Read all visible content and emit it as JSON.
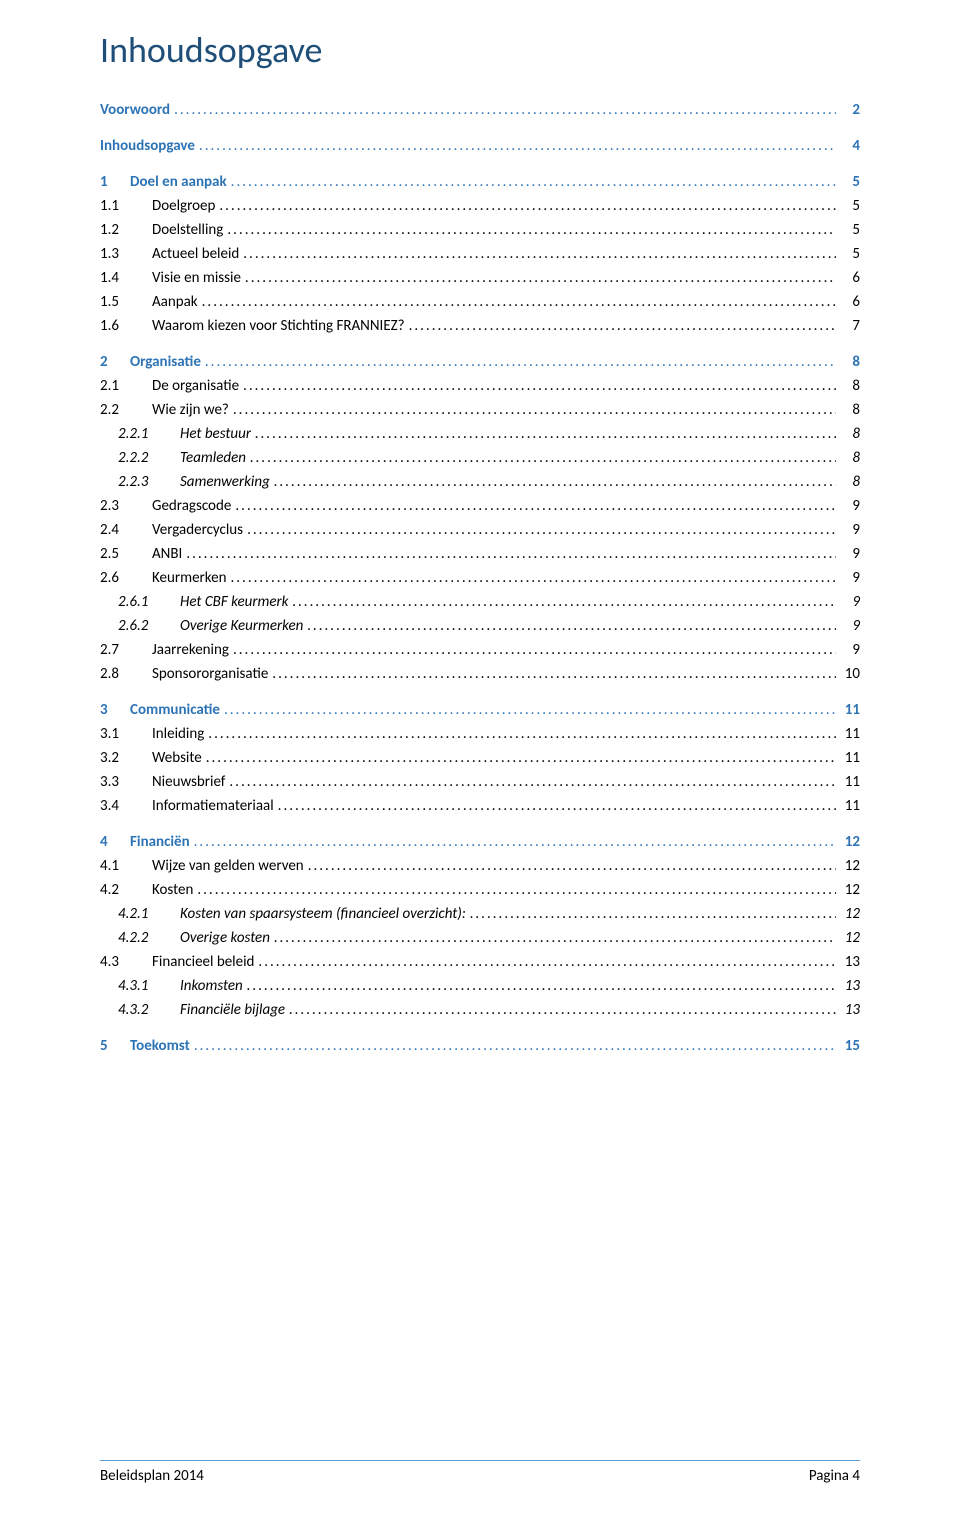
{
  "title": {
    "text": "Inhoudsopgave",
    "color": "#1f4e79",
    "fontsize_pt": 27
  },
  "colors": {
    "heading": "#1f4e79",
    "link": "#2e74b5",
    "body": "#000000",
    "footer_rule": "#5b9bd5",
    "background": "#ffffff"
  },
  "typography": {
    "font_family": "Calibri",
    "body_fontsize_pt": 11,
    "title_fontsize_pt": 27
  },
  "footer": {
    "left": "Beleidsplan 2014",
    "right": "Pagina 4"
  },
  "toc": {
    "leader_char": ".",
    "entries": [
      {
        "level": 0,
        "num": "",
        "label": "Voorwoord",
        "page": "2",
        "color": "#2e74b5",
        "space_before": false
      },
      {
        "level": 0,
        "num": "",
        "label": "Inhoudsopgave",
        "page": "4",
        "color": "#2e74b5",
        "space_before": true
      },
      {
        "level": 0,
        "num": "1",
        "label": "Doel en aanpak",
        "page": "5",
        "color": "#2e74b5",
        "space_before": true
      },
      {
        "level": 1,
        "num": "1.1",
        "label": "Doelgroep",
        "page": "5",
        "color": "#000000",
        "space_before": false
      },
      {
        "level": 1,
        "num": "1.2",
        "label": "Doelstelling",
        "page": "5",
        "color": "#000000",
        "space_before": false
      },
      {
        "level": 1,
        "num": "1.3",
        "label": "Actueel beleid",
        "page": "5",
        "color": "#000000",
        "space_before": false
      },
      {
        "level": 1,
        "num": "1.4",
        "label": "Visie en missie",
        "page": "6",
        "color": "#000000",
        "space_before": false
      },
      {
        "level": 1,
        "num": "1.5",
        "label": "Aanpak",
        "page": "6",
        "color": "#000000",
        "space_before": false
      },
      {
        "level": 1,
        "num": "1.6",
        "label": "Waarom kiezen voor Stichting FRANNIEZ?",
        "page": "7",
        "color": "#000000",
        "space_before": false
      },
      {
        "level": 0,
        "num": "2",
        "label": "Organisatie",
        "page": "8",
        "color": "#2e74b5",
        "space_before": true
      },
      {
        "level": 1,
        "num": "2.1",
        "label": "De organisatie",
        "page": "8",
        "color": "#000000",
        "space_before": false
      },
      {
        "level": 1,
        "num": "2.2",
        "label": "Wie zijn we?",
        "page": "8",
        "color": "#000000",
        "space_before": false
      },
      {
        "level": 2,
        "num": "2.2.1",
        "label": "Het bestuur",
        "page": "8",
        "color": "#000000",
        "space_before": false
      },
      {
        "level": 2,
        "num": "2.2.2",
        "label": "Teamleden",
        "page": "8",
        "color": "#000000",
        "space_before": false
      },
      {
        "level": 2,
        "num": "2.2.3",
        "label": "Samenwerking",
        "page": "8",
        "color": "#000000",
        "space_before": false
      },
      {
        "level": 1,
        "num": "2.3",
        "label": "Gedragscode",
        "page": "9",
        "color": "#000000",
        "space_before": false
      },
      {
        "level": 1,
        "num": "2.4",
        "label": "Vergadercyclus",
        "page": "9",
        "color": "#000000",
        "space_before": false
      },
      {
        "level": 1,
        "num": "2.5",
        "label": "ANBI",
        "page": "9",
        "color": "#000000",
        "space_before": false
      },
      {
        "level": 1,
        "num": "2.6",
        "label": "Keurmerken",
        "page": "9",
        "color": "#000000",
        "space_before": false
      },
      {
        "level": 2,
        "num": "2.6.1",
        "label": "Het CBF keurmerk",
        "page": "9",
        "color": "#000000",
        "space_before": false
      },
      {
        "level": 2,
        "num": "2.6.2",
        "label": "Overige Keurmerken",
        "page": "9",
        "color": "#000000",
        "space_before": false
      },
      {
        "level": 1,
        "num": "2.7",
        "label": "Jaarrekening",
        "page": "9",
        "color": "#000000",
        "space_before": false
      },
      {
        "level": 1,
        "num": "2.8",
        "label": "Sponsororganisatie",
        "page": "10",
        "color": "#000000",
        "space_before": false
      },
      {
        "level": 0,
        "num": "3",
        "label": "Communicatie",
        "page": "11",
        "color": "#2e74b5",
        "space_before": true
      },
      {
        "level": 1,
        "num": "3.1",
        "label": "Inleiding",
        "page": "11",
        "color": "#000000",
        "space_before": false
      },
      {
        "level": 1,
        "num": "3.2",
        "label": "Website",
        "page": "11",
        "color": "#000000",
        "space_before": false
      },
      {
        "level": 1,
        "num": "3.3",
        "label": "Nieuwsbrief",
        "page": "11",
        "color": "#000000",
        "space_before": false
      },
      {
        "level": 1,
        "num": "3.4",
        "label": "Informatiemateriaal",
        "page": "11",
        "color": "#000000",
        "space_before": false
      },
      {
        "level": 0,
        "num": "4",
        "label": "Financiën",
        "page": "12",
        "color": "#2e74b5",
        "space_before": true
      },
      {
        "level": 1,
        "num": "4.1",
        "label": "Wijze van gelden werven",
        "page": "12",
        "color": "#000000",
        "space_before": false
      },
      {
        "level": 1,
        "num": "4.2",
        "label": "Kosten",
        "page": "12",
        "color": "#000000",
        "space_before": false
      },
      {
        "level": 2,
        "num": "4.2.1",
        "label": "Kosten van spaarsysteem (financieel overzicht):",
        "page": "12",
        "color": "#000000",
        "space_before": false
      },
      {
        "level": 2,
        "num": "4.2.2",
        "label": "Overige kosten",
        "page": "12",
        "color": "#000000",
        "space_before": false
      },
      {
        "level": 1,
        "num": "4.3",
        "label": "Financieel beleid",
        "page": "13",
        "color": "#000000",
        "space_before": false
      },
      {
        "level": 2,
        "num": "4.3.1",
        "label": "Inkomsten",
        "page": "13",
        "color": "#000000",
        "space_before": false
      },
      {
        "level": 2,
        "num": "4.3.2",
        "label": "Financiële bijlage",
        "page": "13",
        "color": "#000000",
        "space_before": false
      },
      {
        "level": 0,
        "num": "5",
        "label": "Toekomst",
        "page": "15",
        "color": "#2e74b5",
        "space_before": true
      }
    ]
  }
}
